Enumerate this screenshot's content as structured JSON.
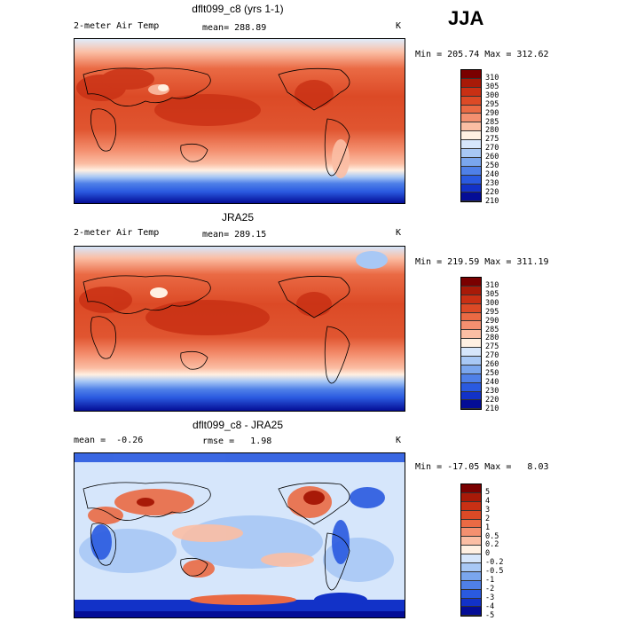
{
  "season": "JJA",
  "panels": [
    {
      "title": "dflt099_c8 (yrs 1-1)",
      "left_label": "2-meter Air Temp",
      "center_label": "mean= 288.89",
      "unit": "K",
      "minmax": "Min = 205.74 Max = 312.62",
      "levels": [
        "310",
        "305",
        "300",
        "295",
        "290",
        "285",
        "280",
        "275",
        "270",
        "260",
        "250",
        "240",
        "230",
        "220",
        "210"
      ],
      "colors": [
        "#7a0000",
        "#a81a08",
        "#c93014",
        "#dc4a26",
        "#ea6a44",
        "#f49070",
        "#fbbea4",
        "#fff0e2",
        "#d6e6fb",
        "#a8c8f5",
        "#7aa6ee",
        "#4f80e8",
        "#2a5ae0",
        "#1232c8",
        "#040d96"
      ]
    },
    {
      "title": "JRA25",
      "left_label": "2-meter Air Temp",
      "center_label": "mean= 289.15",
      "unit": "K",
      "minmax": "Min = 219.59 Max = 311.19",
      "levels": [
        "310",
        "305",
        "300",
        "295",
        "290",
        "285",
        "280",
        "275",
        "270",
        "260",
        "250",
        "240",
        "230",
        "220",
        "210"
      ],
      "colors": [
        "#7a0000",
        "#a81a08",
        "#c93014",
        "#dc4a26",
        "#ea6a44",
        "#f49070",
        "#fbbea4",
        "#fff0e2",
        "#d6e6fb",
        "#a8c8f5",
        "#7aa6ee",
        "#4f80e8",
        "#2a5ae0",
        "#1232c8",
        "#040d96"
      ]
    },
    {
      "title": "dflt099_c8 - JRA25",
      "left_label": "mean =  -0.26",
      "center_label": "rmse =   1.98",
      "unit": "K",
      "minmax": "Min = -17.05 Max =   8.03",
      "levels": [
        "5",
        "4",
        "3",
        "2",
        "1",
        "0.5",
        "0.2",
        "0",
        "-0.2",
        "-0.5",
        "-1",
        "-2",
        "-3",
        "-4",
        "-5"
      ],
      "colors": [
        "#7a0000",
        "#a81a08",
        "#c93014",
        "#dc4a26",
        "#ea6a44",
        "#f49070",
        "#fbbea4",
        "#fff0e2",
        "#d6e6fb",
        "#a8c8f5",
        "#7aa6ee",
        "#4f80e8",
        "#2a5ae0",
        "#1232c8",
        "#040d96"
      ]
    }
  ]
}
